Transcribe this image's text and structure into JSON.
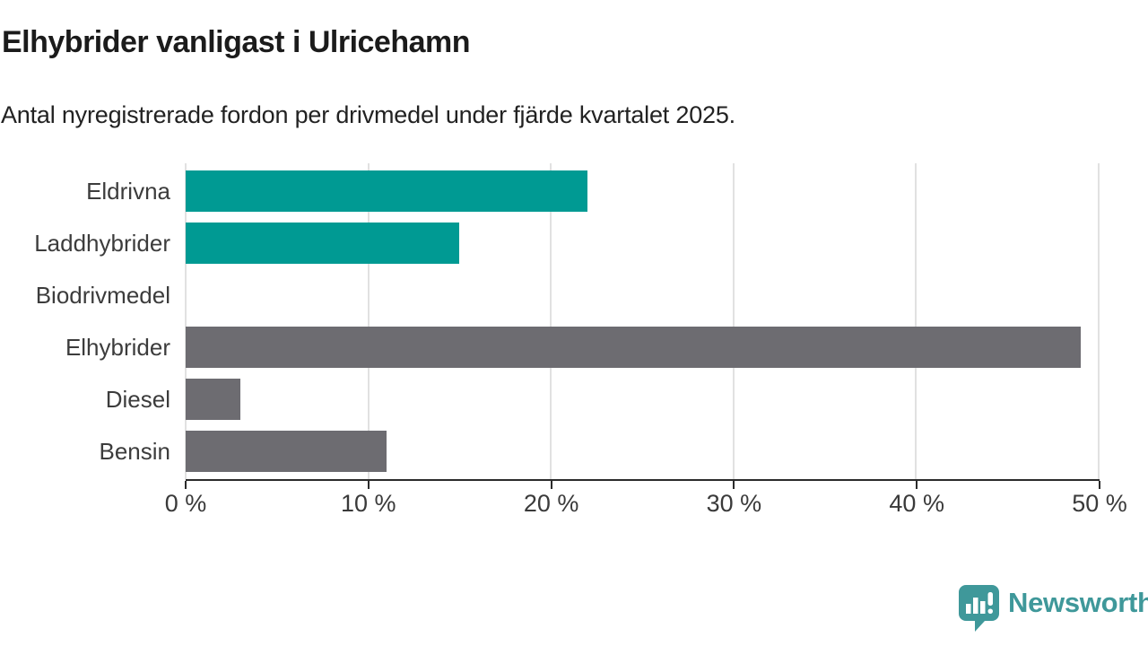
{
  "header": {
    "title": "Elhybrider vanligast i Ulricehamn",
    "subtitle": "Antal nyregistrerade fordon per drivmedel under fjärde kvartalet 2025."
  },
  "chart_data": {
    "type": "bar",
    "orientation": "horizontal",
    "title": "Elhybrider vanligast i Ulricehamn",
    "subtitle": "Antal nyregistrerade fordon per drivmedel under fjärde kvartalet 2025.",
    "categories": [
      "Eldrivna",
      "Laddhybrider",
      "Biodrivmedel",
      "Elhybrider",
      "Diesel",
      "Bensin"
    ],
    "values": [
      22,
      15,
      0,
      49,
      3,
      11
    ],
    "unit": "%",
    "xlim": [
      0,
      50
    ],
    "x_ticks": [
      0,
      10,
      20,
      30,
      40,
      50
    ],
    "x_tick_labels": [
      "0 %",
      "10 %",
      "20 %",
      "30 %",
      "40 %",
      "50 %"
    ],
    "bar_colors": [
      "#009a93",
      "#009a93",
      "#6d6c71",
      "#6d6c71",
      "#6d6c71",
      "#6d6c71"
    ],
    "grid": true,
    "legend": "none"
  },
  "colors": {
    "accent_teal": "#009a93",
    "neutral_gray": "#6d6c71",
    "gridline": "#e1e1e1",
    "axis": "#2b2b2b",
    "text_dark": "#1b1b1b",
    "text_label": "#3c3c3c",
    "brand_teal": "#3f989a"
  },
  "footer": {
    "brand": "Newsworthy",
    "logo_icon": "bar-chart-speech-bubble-icon"
  }
}
